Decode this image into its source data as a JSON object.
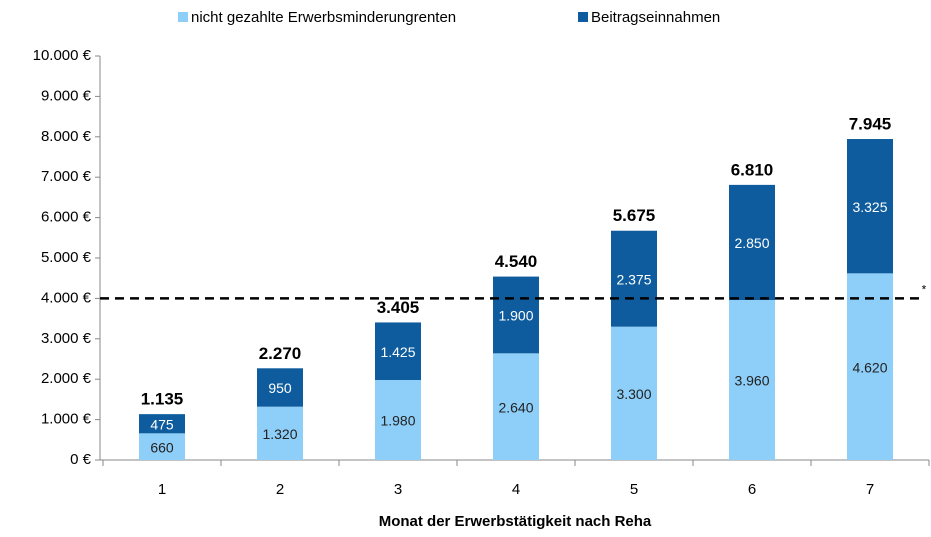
{
  "chart_data": {
    "type": "stacked_bar",
    "categories": [
      "1",
      "2",
      "3",
      "4",
      "5",
      "6",
      "7"
    ],
    "series": [
      {
        "name": "nicht gezahlte Erwerbsminderungrenten",
        "color": "#8ecff9",
        "values": [
          660,
          1320,
          1980,
          2640,
          3300,
          3960,
          4620
        ],
        "value_labels": [
          "660",
          "1.320",
          "1.980",
          "2.640",
          "3.300",
          "3.960",
          "4.620"
        ]
      },
      {
        "name": "Beitragseinnahmen",
        "color": "#0e5c9e",
        "values": [
          475,
          950,
          1425,
          1900,
          2375,
          2850,
          3325
        ],
        "value_labels": [
          "475",
          "950",
          "1.425",
          "1.900",
          "2.375",
          "2.850",
          "3.325"
        ]
      }
    ],
    "totals": {
      "values": [
        1135,
        2270,
        3405,
        4540,
        5675,
        6810,
        7945
      ],
      "value_labels": [
        "1.135",
        "2.270",
        "3.405",
        "4.540",
        "5.675",
        "6.810",
        "7.945"
      ]
    },
    "ylim": [
      0,
      10000
    ],
    "yticks": [
      {
        "value": 0,
        "label": "0 €"
      },
      {
        "value": 1000,
        "label": "1.000 €"
      },
      {
        "value": 2000,
        "label": "2.000 €"
      },
      {
        "value": 3000,
        "label": "3.000 €"
      },
      {
        "value": 4000,
        "label": "4.000 €"
      },
      {
        "value": 5000,
        "label": "5.000 €"
      },
      {
        "value": 6000,
        "label": "6.000 €"
      },
      {
        "value": 7000,
        "label": "7.000 €"
      },
      {
        "value": 8000,
        "label": "8.000 €"
      },
      {
        "value": 9000,
        "label": "9.000 €"
      },
      {
        "value": 10000,
        "label": "10.000 €"
      }
    ],
    "reference_line": {
      "value": 4000,
      "label": "*"
    },
    "x_label": "Monat der Erwerbstätigkeit  nach Reha",
    "legend": "top"
  }
}
